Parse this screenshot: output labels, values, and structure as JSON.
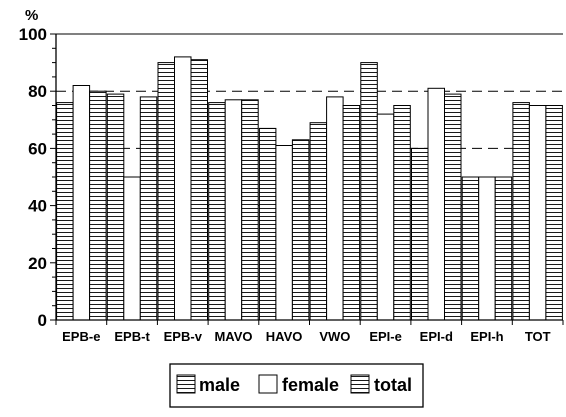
{
  "chart_data": {
    "type": "bar",
    "unit_label": "%",
    "ylim": [
      0,
      100
    ],
    "yticks": [
      0,
      20,
      40,
      60,
      80,
      100
    ],
    "grid": "dashed horizontal at 20, 60, 80",
    "legend_position": "bottom",
    "categories": [
      "EPB-e",
      "EPB-t",
      "EPB-v",
      "MAVO",
      "HAVO",
      "VWO",
      "EPI-e",
      "EPI-d",
      "EPI-h",
      "TOT"
    ],
    "series": [
      {
        "name": "male",
        "pattern": "horizontal-lines",
        "values": [
          76,
          79,
          90,
          76,
          67,
          69,
          90,
          60,
          50,
          76
        ]
      },
      {
        "name": "female",
        "pattern": "white",
        "values": [
          82,
          50,
          92,
          77,
          61,
          78,
          72,
          81,
          50,
          75
        ]
      },
      {
        "name": "total",
        "pattern": "horizontal-lines",
        "values": [
          80,
          78,
          91,
          77,
          63,
          75,
          75,
          79,
          50,
          75
        ]
      }
    ]
  },
  "colors": {
    "bar_stroke": "#000000",
    "hatch": "#000000",
    "background": "#ffffff",
    "grid": "#000000"
  }
}
